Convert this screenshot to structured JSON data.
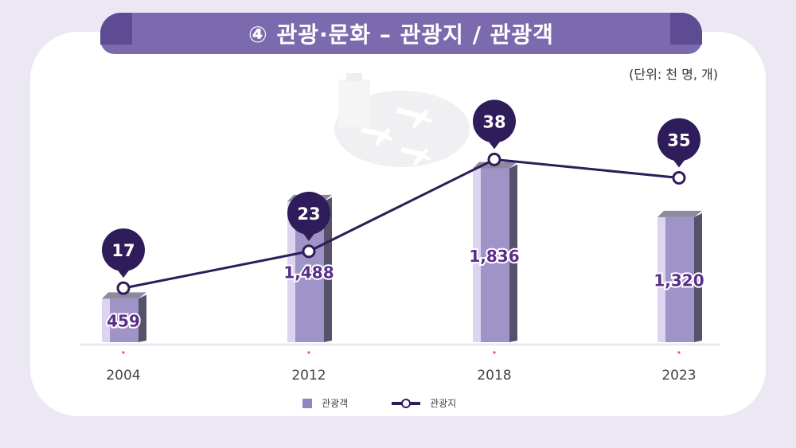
{
  "header": {
    "title": "④ 관광·문화 – 관광지 / 관광객",
    "unit_note": "(단위: 천 명, 개)"
  },
  "chart_data": {
    "type": "bar",
    "categories": [
      "2004",
      "2012",
      "2018",
      "2023"
    ],
    "series": [
      {
        "name": "관광객",
        "type": "bar",
        "values": [
          459,
          1488,
          1836,
          1320
        ],
        "labels": [
          "459",
          "1,488",
          "1,836",
          "1,320"
        ],
        "color": "#a093c8"
      },
      {
        "name": "관광지",
        "type": "line",
        "values": [
          17,
          23,
          38,
          35
        ],
        "labels": [
          "17",
          "23",
          "38",
          "35"
        ],
        "color": "#2f1c5a"
      }
    ],
    "ylim": [
      0,
      2000
    ],
    "grid": false,
    "legend_position": "bottom-center"
  },
  "legend": {
    "bar_label": "관광객",
    "line_label": "관광지"
  },
  "colors": {
    "title_bg": "#7b6aae",
    "bar_front": "#a093c8",
    "bar_top": "#8c8a9e",
    "bar_side": "#57526c",
    "line": "#2f1c5a",
    "value_text": "#5a2f8a",
    "tick_dot": "#e85a5a"
  }
}
